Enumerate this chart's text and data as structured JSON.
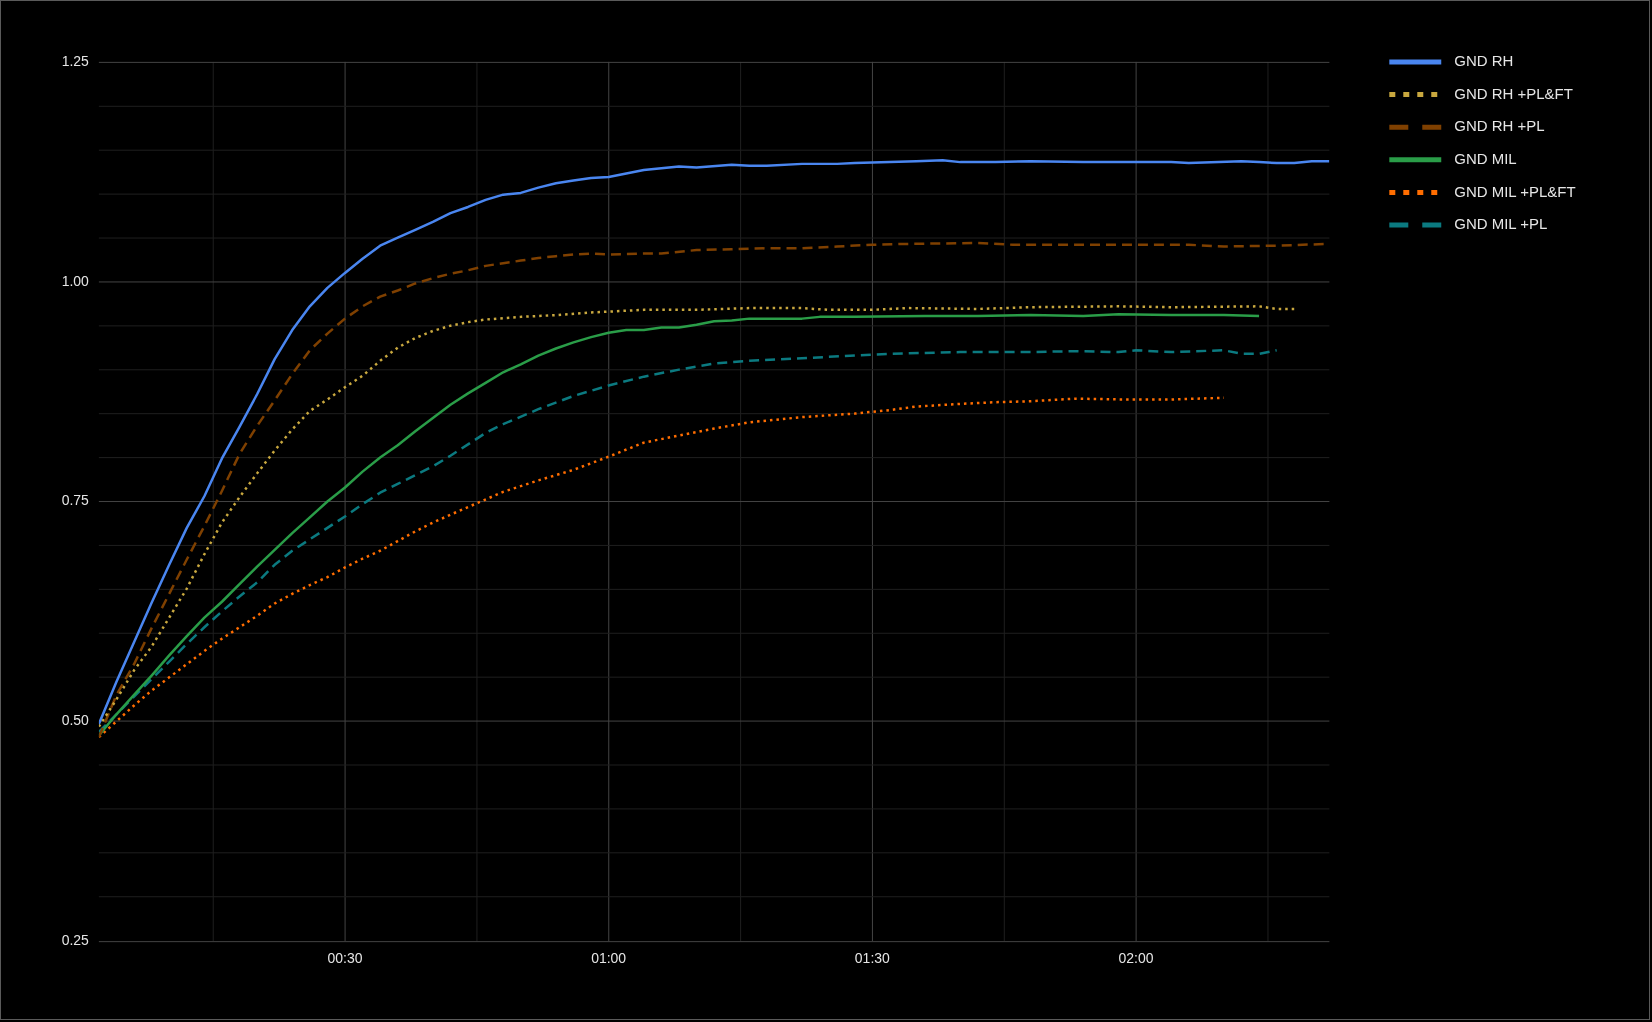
{
  "chart_data": {
    "type": "line",
    "xlim": [
      2,
      142
    ],
    "xticks": [
      {
        "value": 15,
        "label": null
      },
      {
        "value": 30,
        "label": "00:30"
      },
      {
        "value": 45,
        "label": null
      },
      {
        "value": 60,
        "label": "01:00"
      },
      {
        "value": 75,
        "label": null
      },
      {
        "value": 90,
        "label": "01:30"
      },
      {
        "value": 105,
        "label": null
      },
      {
        "value": 120,
        "label": "02:00"
      },
      {
        "value": 135,
        "label": null
      }
    ],
    "ylim": [
      0.25,
      1.25
    ],
    "yticks": [
      0.25,
      {
        "value": 0.3,
        "label": null
      },
      {
        "value": 0.35,
        "label": null
      },
      {
        "value": 0.4,
        "label": null
      },
      {
        "value": 0.45,
        "label": null
      },
      {
        "value": 0.5,
        "label": "0.50"
      },
      {
        "value": 0.55,
        "label": null
      },
      {
        "value": 0.6,
        "label": null
      },
      {
        "value": 0.65,
        "label": null
      },
      {
        "value": 0.7,
        "label": null
      },
      0.75,
      {
        "value": 0.8,
        "label": null
      },
      {
        "value": 0.85,
        "label": null
      },
      {
        "value": 0.9,
        "label": null
      },
      {
        "value": 0.95,
        "label": null
      },
      {
        "value": 1.0,
        "label": "1.00"
      },
      {
        "value": 1.05,
        "label": null
      },
      {
        "value": 1.1,
        "label": null
      },
      {
        "value": 1.15,
        "label": null
      },
      {
        "value": 1.2,
        "label": null
      },
      1.25
    ],
    "grid": true,
    "legend": "top right",
    "marker": "none",
    "series": [
      {
        "name": "GND RH",
        "color": "#4a86f0",
        "line_style": "solid",
        "x": [
          2,
          4,
          6,
          8,
          10,
          12,
          14,
          16,
          18,
          20,
          22,
          24,
          26,
          28,
          30,
          32,
          34,
          36,
          38,
          40,
          42,
          44,
          46,
          48,
          50,
          52,
          54,
          56,
          58,
          60,
          62,
          64,
          66,
          68,
          70,
          74,
          76,
          78,
          82,
          86,
          88,
          92,
          95,
          98,
          100,
          104,
          108,
          114,
          120,
          124,
          126,
          132,
          134,
          136,
          138,
          140,
          142
        ],
        "values": [
          0.497,
          0.545,
          0.59,
          0.635,
          0.678,
          0.72,
          0.756,
          0.799,
          0.835,
          0.872,
          0.912,
          0.945,
          0.972,
          0.993,
          1.01,
          1.026,
          1.041,
          1.05,
          1.059,
          1.068,
          1.078,
          1.085,
          1.093,
          1.099,
          1.101,
          1.107,
          1.112,
          1.115,
          1.118,
          1.119,
          1.123,
          1.127,
          1.129,
          1.131,
          1.13,
          1.133,
          1.132,
          1.132,
          1.134,
          1.134,
          1.135,
          1.136,
          1.137,
          1.138,
          1.136,
          1.136,
          1.137,
          1.136,
          1.136,
          1.136,
          1.135,
          1.137,
          1.136,
          1.135,
          1.135,
          1.137,
          1.137
        ]
      },
      {
        "name": "GND RH +PL&FT",
        "color": "#c9a83f",
        "line_style": "dotted",
        "x": [
          2,
          4,
          6,
          8,
          10,
          12,
          14,
          16,
          18,
          20,
          22,
          24,
          26,
          28,
          30,
          32,
          34,
          36,
          38,
          40,
          42,
          44,
          46,
          50,
          54,
          58,
          60,
          64,
          70,
          76,
          82,
          85,
          90,
          94,
          102,
          108,
          118,
          124,
          134,
          136,
          138
        ],
        "values": [
          0.494,
          0.525,
          0.558,
          0.585,
          0.618,
          0.651,
          0.69,
          0.726,
          0.755,
          0.782,
          0.808,
          0.832,
          0.853,
          0.866,
          0.88,
          0.893,
          0.91,
          0.925,
          0.936,
          0.944,
          0.95,
          0.954,
          0.957,
          0.96,
          0.962,
          0.965,
          0.966,
          0.968,
          0.968,
          0.97,
          0.97,
          0.968,
          0.968,
          0.97,
          0.969,
          0.971,
          0.972,
          0.971,
          0.972,
          0.969,
          0.969
        ]
      },
      {
        "name": "GND RH +PL",
        "color": "#7f4000",
        "line_style": "dashed",
        "x": [
          2,
          4,
          6,
          8,
          10,
          12,
          14,
          16,
          18,
          20,
          22,
          24,
          26,
          28,
          30,
          32,
          34,
          36,
          38,
          40,
          42,
          44,
          46,
          48,
          50,
          52,
          54,
          56,
          58,
          60,
          64,
          66,
          70,
          74,
          78,
          82,
          86,
          90,
          94,
          102,
          106,
          114,
          120,
          126,
          130,
          136,
          142
        ],
        "values": [
          0.482,
          0.53,
          0.565,
          0.606,
          0.645,
          0.684,
          0.722,
          0.762,
          0.804,
          0.836,
          0.865,
          0.895,
          0.922,
          0.941,
          0.958,
          0.972,
          0.983,
          0.99,
          0.998,
          1.004,
          1.009,
          1.013,
          1.018,
          1.021,
          1.024,
          1.027,
          1.029,
          1.031,
          1.032,
          1.031,
          1.032,
          1.032,
          1.036,
          1.037,
          1.038,
          1.038,
          1.04,
          1.042,
          1.043,
          1.044,
          1.042,
          1.042,
          1.042,
          1.042,
          1.04,
          1.041,
          1.043
        ]
      },
      {
        "name": "GND MIL",
        "color": "#2a9d48",
        "line_style": "solid",
        "x": [
          2,
          4,
          6,
          8,
          10,
          12,
          14,
          16,
          18,
          20,
          22,
          24,
          26,
          28,
          30,
          32,
          34,
          36,
          38,
          40,
          42,
          44,
          46,
          48,
          50,
          52,
          54,
          56,
          58,
          60,
          62,
          64,
          66,
          68,
          70,
          72,
          74,
          76,
          82,
          84,
          88,
          96,
          102,
          108,
          114,
          118,
          124,
          130,
          134
        ],
        "values": [
          0.484,
          0.508,
          0.53,
          0.552,
          0.575,
          0.597,
          0.618,
          0.636,
          0.656,
          0.676,
          0.695,
          0.714,
          0.732,
          0.75,
          0.766,
          0.784,
          0.8,
          0.814,
          0.83,
          0.845,
          0.86,
          0.873,
          0.885,
          0.897,
          0.906,
          0.916,
          0.924,
          0.931,
          0.937,
          0.942,
          0.945,
          0.945,
          0.948,
          0.948,
          0.951,
          0.955,
          0.956,
          0.958,
          0.958,
          0.96,
          0.96,
          0.961,
          0.961,
          0.962,
          0.961,
          0.963,
          0.962,
          0.962,
          0.961
        ]
      },
      {
        "name": "GND MIL +PL&FT",
        "color": "#ff6d00",
        "line_style": "dotted",
        "x": [
          2,
          4,
          6,
          8,
          10,
          12,
          14,
          16,
          18,
          20,
          22,
          24,
          26,
          28,
          30,
          32,
          34,
          36,
          38,
          40,
          42,
          45,
          48,
          52,
          56,
          60,
          64,
          68,
          72,
          76,
          82,
          88,
          92,
          95,
          100,
          104,
          108,
          113,
          119,
          124,
          130
        ],
        "values": [
          0.482,
          0.5,
          0.518,
          0.535,
          0.55,
          0.565,
          0.58,
          0.594,
          0.607,
          0.62,
          0.634,
          0.645,
          0.655,
          0.664,
          0.675,
          0.685,
          0.694,
          0.705,
          0.716,
          0.726,
          0.735,
          0.748,
          0.761,
          0.774,
          0.786,
          0.801,
          0.817,
          0.825,
          0.833,
          0.84,
          0.846,
          0.85,
          0.854,
          0.858,
          0.861,
          0.863,
          0.864,
          0.867,
          0.866,
          0.866,
          0.868
        ]
      },
      {
        "name": "GND MIL +PL",
        "color": "#0b7a80",
        "line_style": "dashed",
        "x": [
          2,
          4,
          6,
          8,
          10,
          12,
          14,
          16,
          18,
          20,
          22,
          24,
          26,
          28,
          30,
          32,
          34,
          36,
          38,
          40,
          42,
          44,
          46,
          48,
          52,
          56,
          60,
          64,
          68,
          72,
          76,
          82,
          88,
          92,
          100,
          108,
          113,
          118,
          120,
          124,
          130,
          132,
          134,
          136
        ],
        "values": [
          0.488,
          0.508,
          0.528,
          0.548,
          0.568,
          0.588,
          0.607,
          0.625,
          0.642,
          0.658,
          0.678,
          0.694,
          0.707,
          0.72,
          0.733,
          0.747,
          0.76,
          0.77,
          0.78,
          0.79,
          0.802,
          0.815,
          0.828,
          0.838,
          0.855,
          0.87,
          0.882,
          0.892,
          0.9,
          0.907,
          0.91,
          0.913,
          0.916,
          0.918,
          0.92,
          0.92,
          0.921,
          0.92,
          0.922,
          0.92,
          0.922,
          0.918,
          0.918,
          0.922
        ]
      }
    ]
  }
}
